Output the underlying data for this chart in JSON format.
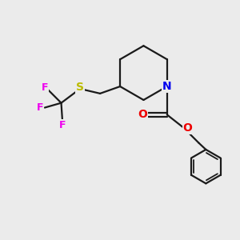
{
  "background_color": "#ebebeb",
  "bond_color": "#1a1a1a",
  "N_color": "#0000ee",
  "O_color": "#ee0000",
  "S_color": "#bbbb00",
  "F_color": "#ee00ee",
  "line_width": 1.6,
  "figsize": [
    3.0,
    3.0
  ],
  "dpi": 100,
  "xlim": [
    0,
    10
  ],
  "ylim": [
    0,
    10
  ]
}
